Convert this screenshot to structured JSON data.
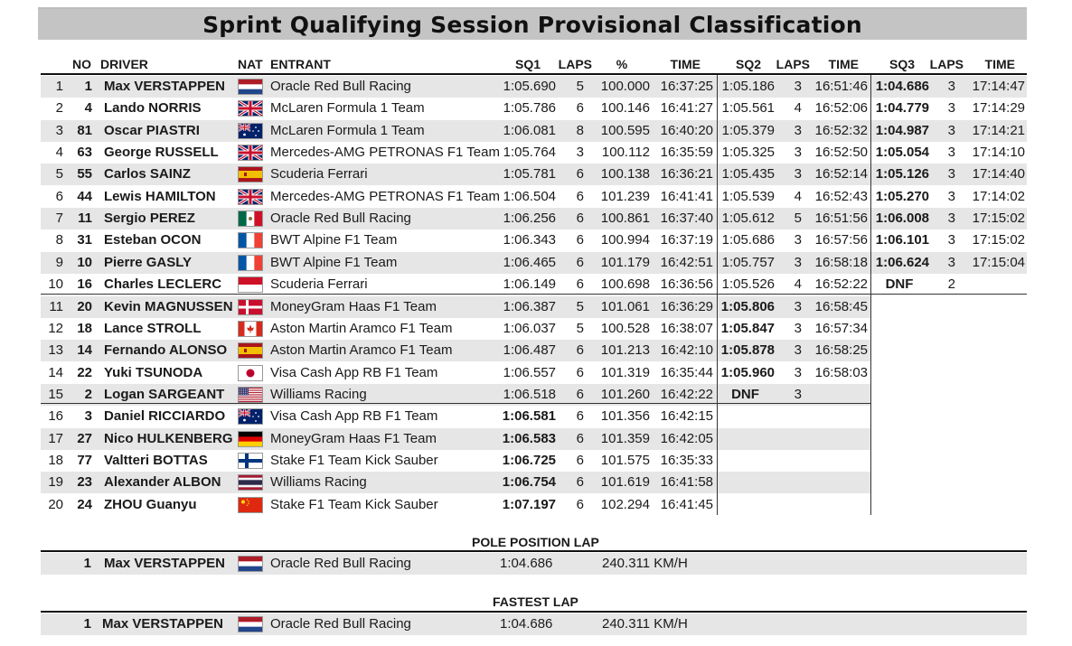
{
  "title": "Sprint Qualifying Session Provisional Classification",
  "headers": {
    "no": "NO",
    "driver": "DRIVER",
    "nat": "NAT",
    "entrant": "ENTRANT",
    "sq1": "SQ1",
    "laps1": "LAPS",
    "pct": "%",
    "time1": "TIME",
    "sq2": "SQ2",
    "laps2": "LAPS",
    "time2": "TIME",
    "sq3": "SQ3",
    "laps3": "LAPS",
    "time3": "TIME"
  },
  "rows": [
    {
      "pos": "1",
      "no": "1",
      "driver": "Max VERSTAPPEN",
      "flag": "NED",
      "entrant": "Oracle Red Bull Racing",
      "sq1": "1:05.690",
      "laps1": "5",
      "pct": "100.000",
      "time1": "16:37:25",
      "sq2": "1:05.186",
      "laps2": "3",
      "time2": "16:51:46",
      "sq3": "1:04.686",
      "laps3": "3",
      "time3": "17:14:47"
    },
    {
      "pos": "2",
      "no": "4",
      "driver": "Lando NORRIS",
      "flag": "GBR",
      "entrant": "McLaren Formula 1 Team",
      "sq1": "1:05.786",
      "laps1": "6",
      "pct": "100.146",
      "time1": "16:41:27",
      "sq2": "1:05.561",
      "laps2": "4",
      "time2": "16:52:06",
      "sq3": "1:04.779",
      "laps3": "3",
      "time3": "17:14:29"
    },
    {
      "pos": "3",
      "no": "81",
      "driver": "Oscar PIASTRI",
      "flag": "AUS",
      "entrant": "McLaren Formula 1 Team",
      "sq1": "1:06.081",
      "laps1": "8",
      "pct": "100.595",
      "time1": "16:40:20",
      "sq2": "1:05.379",
      "laps2": "3",
      "time2": "16:52:32",
      "sq3": "1:04.987",
      "laps3": "3",
      "time3": "17:14:21"
    },
    {
      "pos": "4",
      "no": "63",
      "driver": "George RUSSELL",
      "flag": "GBR",
      "entrant": "Mercedes-AMG PETRONAS F1 Team",
      "sq1": "1:05.764",
      "laps1": "3",
      "pct": "100.112",
      "time1": "16:35:59",
      "sq2": "1:05.325",
      "laps2": "3",
      "time2": "16:52:50",
      "sq3": "1:05.054",
      "laps3": "3",
      "time3": "17:14:10"
    },
    {
      "pos": "5",
      "no": "55",
      "driver": "Carlos SAINZ",
      "flag": "ESP",
      "entrant": "Scuderia Ferrari",
      "sq1": "1:05.781",
      "laps1": "6",
      "pct": "100.138",
      "time1": "16:36:21",
      "sq2": "1:05.435",
      "laps2": "3",
      "time2": "16:52:14",
      "sq3": "1:05.126",
      "laps3": "3",
      "time3": "17:14:40"
    },
    {
      "pos": "6",
      "no": "44",
      "driver": "Lewis HAMILTON",
      "flag": "GBR",
      "entrant": "Mercedes-AMG PETRONAS F1 Team",
      "sq1": "1:06.504",
      "laps1": "6",
      "pct": "101.239",
      "time1": "16:41:41",
      "sq2": "1:05.539",
      "laps2": "4",
      "time2": "16:52:43",
      "sq3": "1:05.270",
      "laps3": "3",
      "time3": "17:14:02"
    },
    {
      "pos": "7",
      "no": "11",
      "driver": "Sergio PEREZ",
      "flag": "MEX",
      "entrant": "Oracle Red Bull Racing",
      "sq1": "1:06.256",
      "laps1": "6",
      "pct": "100.861",
      "time1": "16:37:40",
      "sq2": "1:05.612",
      "laps2": "5",
      "time2": "16:51:56",
      "sq3": "1:06.008",
      "laps3": "3",
      "time3": "17:15:02"
    },
    {
      "pos": "8",
      "no": "31",
      "driver": "Esteban OCON",
      "flag": "FRA",
      "entrant": "BWT Alpine F1 Team",
      "sq1": "1:06.343",
      "laps1": "6",
      "pct": "100.994",
      "time1": "16:37:19",
      "sq2": "1:05.686",
      "laps2": "3",
      "time2": "16:57:56",
      "sq3": "1:06.101",
      "laps3": "3",
      "time3": "17:15:02"
    },
    {
      "pos": "9",
      "no": "10",
      "driver": "Pierre GASLY",
      "flag": "FRA",
      "entrant": "BWT Alpine F1 Team",
      "sq1": "1:06.465",
      "laps1": "6",
      "pct": "101.179",
      "time1": "16:42:51",
      "sq2": "1:05.757",
      "laps2": "3",
      "time2": "16:58:18",
      "sq3": "1:06.624",
      "laps3": "3",
      "time3": "17:15:04"
    },
    {
      "pos": "10",
      "no": "16",
      "driver": "Charles LECLERC",
      "flag": "MON",
      "entrant": "Scuderia Ferrari",
      "sq1": "1:06.149",
      "laps1": "6",
      "pct": "100.698",
      "time1": "16:36:56",
      "sq2": "1:05.526",
      "laps2": "4",
      "time2": "16:52:22",
      "sq3": "DNF",
      "laps3": "2",
      "time3": ""
    },
    {
      "pos": "11",
      "no": "20",
      "driver": "Kevin MAGNUSSEN",
      "flag": "DEN",
      "entrant": "MoneyGram Haas F1 Team",
      "sq1": "1:06.387",
      "laps1": "5",
      "pct": "101.061",
      "time1": "16:36:29",
      "sq2": "1:05.806",
      "laps2": "3",
      "time2": "16:58:45",
      "sq3": "",
      "laps3": "",
      "time3": ""
    },
    {
      "pos": "12",
      "no": "18",
      "driver": "Lance STROLL",
      "flag": "CAN",
      "entrant": "Aston Martin Aramco F1 Team",
      "sq1": "1:06.037",
      "laps1": "5",
      "pct": "100.528",
      "time1": "16:38:07",
      "sq2": "1:05.847",
      "laps2": "3",
      "time2": "16:57:34",
      "sq3": "",
      "laps3": "",
      "time3": ""
    },
    {
      "pos": "13",
      "no": "14",
      "driver": "Fernando ALONSO",
      "flag": "ESP",
      "entrant": "Aston Martin Aramco F1 Team",
      "sq1": "1:06.487",
      "laps1": "6",
      "pct": "101.213",
      "time1": "16:42:10",
      "sq2": "1:05.878",
      "laps2": "3",
      "time2": "16:58:25",
      "sq3": "",
      "laps3": "",
      "time3": ""
    },
    {
      "pos": "14",
      "no": "22",
      "driver": "Yuki TSUNODA",
      "flag": "JPN",
      "entrant": "Visa Cash App RB F1 Team",
      "sq1": "1:06.557",
      "laps1": "6",
      "pct": "101.319",
      "time1": "16:35:44",
      "sq2": "1:05.960",
      "laps2": "3",
      "time2": "16:58:03",
      "sq3": "",
      "laps3": "",
      "time3": ""
    },
    {
      "pos": "15",
      "no": "2",
      "driver": "Logan SARGEANT",
      "flag": "USA",
      "entrant": "Williams Racing",
      "sq1": "1:06.518",
      "laps1": "6",
      "pct": "101.260",
      "time1": "16:42:22",
      "sq2": "DNF",
      "laps2": "3",
      "time2": "",
      "sq3": "",
      "laps3": "",
      "time3": ""
    },
    {
      "pos": "16",
      "no": "3",
      "driver": "Daniel RICCIARDO",
      "flag": "AUS",
      "entrant": "Visa Cash App RB F1 Team",
      "sq1": "1:06.581",
      "laps1": "6",
      "pct": "101.356",
      "time1": "16:42:15",
      "sq2": "",
      "laps2": "",
      "time2": "",
      "sq3": "",
      "laps3": "",
      "time3": ""
    },
    {
      "pos": "17",
      "no": "27",
      "driver": "Nico HULKENBERG",
      "flag": "GER",
      "entrant": "MoneyGram Haas F1 Team",
      "sq1": "1:06.583",
      "laps1": "6",
      "pct": "101.359",
      "time1": "16:42:05",
      "sq2": "",
      "laps2": "",
      "time2": "",
      "sq3": "",
      "laps3": "",
      "time3": ""
    },
    {
      "pos": "18",
      "no": "77",
      "driver": "Valtteri BOTTAS",
      "flag": "FIN",
      "entrant": "Stake F1 Team Kick Sauber",
      "sq1": "1:06.725",
      "laps1": "6",
      "pct": "101.575",
      "time1": "16:35:33",
      "sq2": "",
      "laps2": "",
      "time2": "",
      "sq3": "",
      "laps3": "",
      "time3": ""
    },
    {
      "pos": "19",
      "no": "23",
      "driver": "Alexander ALBON",
      "flag": "THA",
      "entrant": "Williams Racing",
      "sq1": "1:06.754",
      "laps1": "6",
      "pct": "101.619",
      "time1": "16:41:58",
      "sq2": "",
      "laps2": "",
      "time2": "",
      "sq3": "",
      "laps3": "",
      "time3": ""
    },
    {
      "pos": "20",
      "no": "24",
      "driver": "ZHOU Guanyu",
      "flag": "CHN",
      "entrant": "Stake F1 Team Kick Sauber",
      "sq1": "1:07.197",
      "laps1": "6",
      "pct": "102.294",
      "time1": "16:41:45",
      "sq2": "",
      "laps2": "",
      "time2": "",
      "sq3": "",
      "laps3": "",
      "time3": ""
    }
  ],
  "pole": {
    "title": "POLE POSITION LAP",
    "no": "1",
    "driver": "Max VERSTAPPEN",
    "flag": "NED",
    "entrant": "Oracle Red Bull Racing",
    "time": "1:04.686",
    "speed": "240.311 KM/H"
  },
  "fastest": {
    "title": "FASTEST LAP",
    "no": "1",
    "driver": "Max VERSTAPPEN",
    "flag": "NED",
    "entrant": "Oracle Red Bull Racing",
    "time": "1:04.686",
    "speed": "240.311 KM/H"
  },
  "colors": {
    "row_shade": "#e6e6e6",
    "title_bar": "#c4c4c4"
  }
}
